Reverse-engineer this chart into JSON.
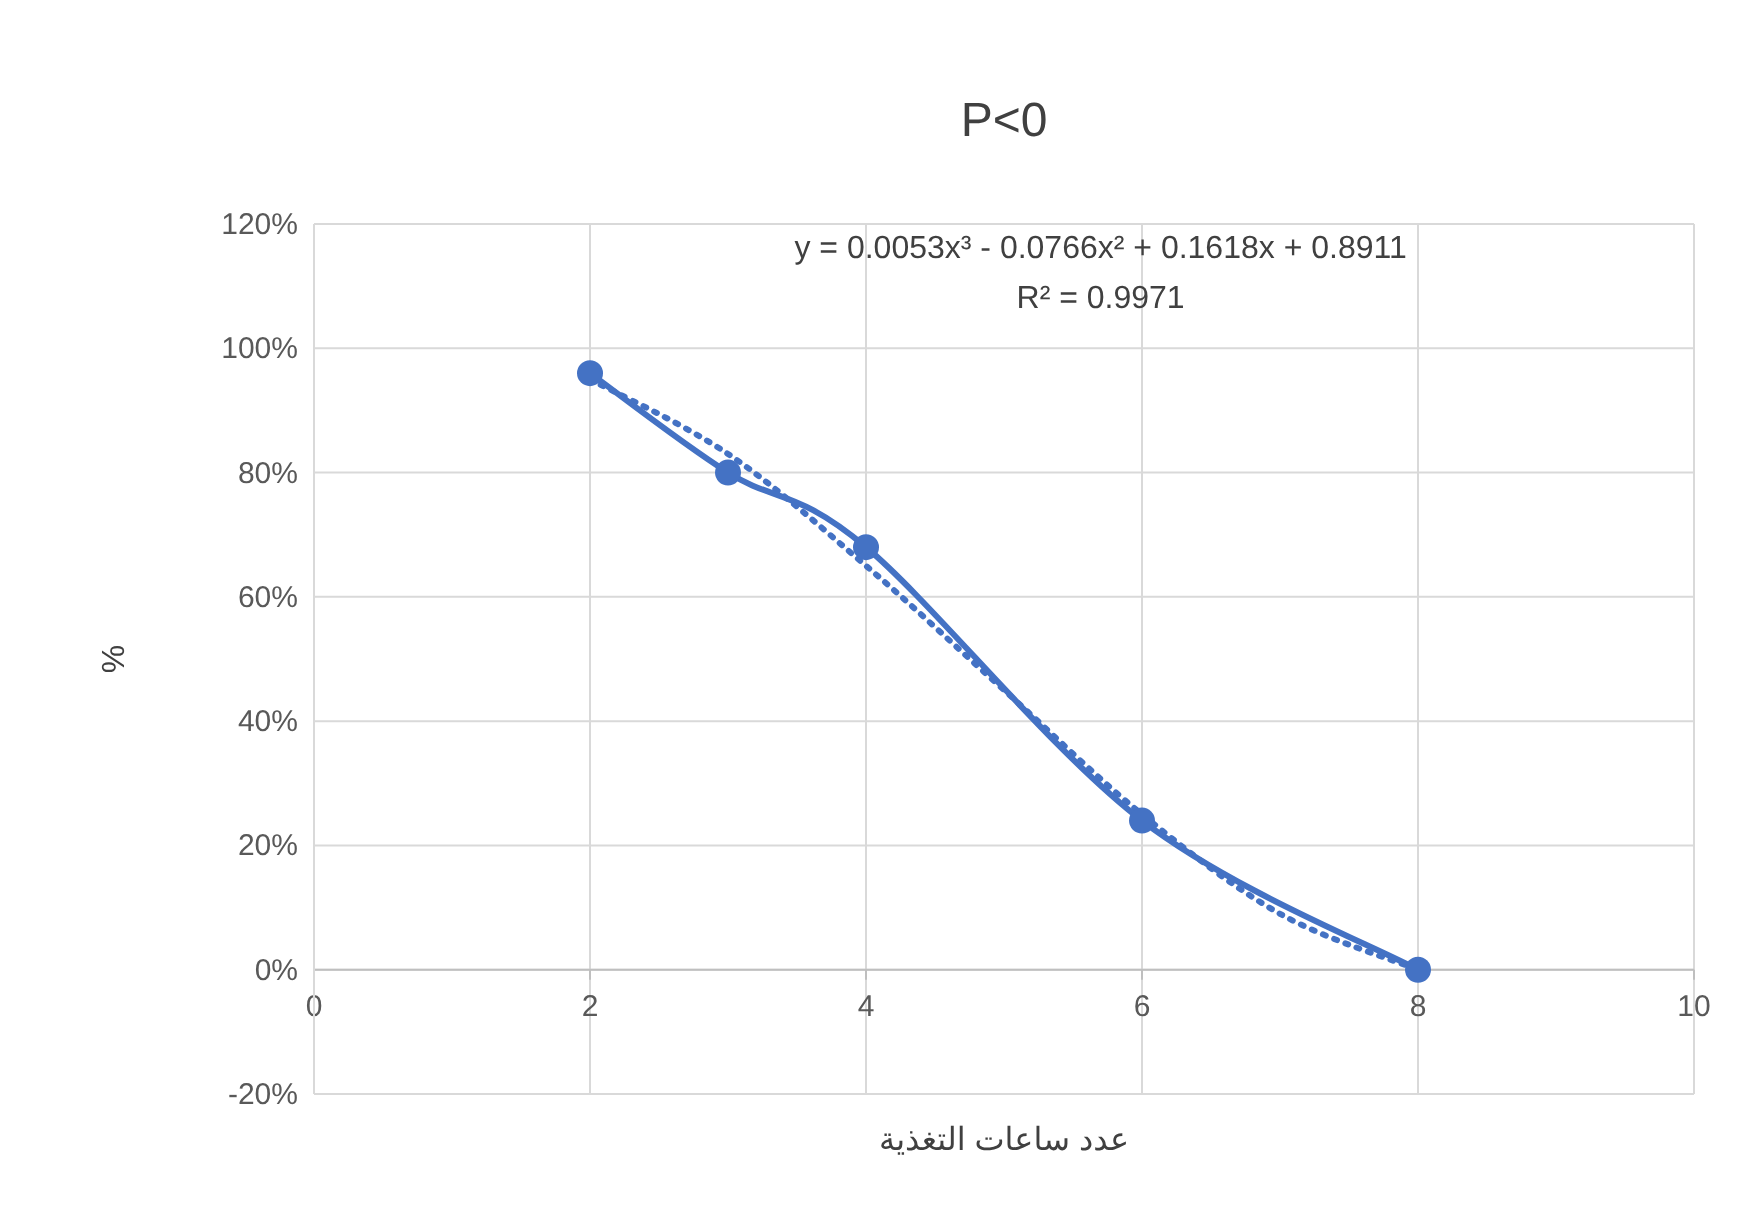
{
  "chart_data": {
    "type": "line",
    "title": "P<0",
    "xlabel": "عدد ساعات التغذية",
    "ylabel": "%",
    "xlim": [
      0,
      10
    ],
    "xticks": [
      0,
      2,
      4,
      6,
      8,
      10
    ],
    "ylim": [
      -20,
      120
    ],
    "yticks": [
      {
        "value": -20,
        "label": "-20%"
      },
      {
        "value": 0,
        "label": "0%"
      },
      {
        "value": 20,
        "label": "20%"
      },
      {
        "value": 40,
        "label": "40%"
      },
      {
        "value": 60,
        "label": "60%"
      },
      {
        "value": 80,
        "label": "80%"
      },
      {
        "value": 100,
        "label": "100%"
      },
      {
        "value": 120,
        "label": "120%"
      }
    ],
    "grid": true,
    "annotations": [
      "y = 0.0053x³ - 0.0766x² + 0.1618x + 0.8911",
      "R² = 0.9971"
    ],
    "series": [
      {
        "type": "line",
        "color": "#4472c4",
        "x": [
          2,
          3,
          4,
          6,
          8
        ],
        "values": [
          96,
          80,
          68,
          24,
          0
        ],
        "marker": "circle",
        "line_style": "solid"
      },
      {
        "type": "line",
        "color": "#4472c4",
        "x": [
          2,
          3,
          4,
          5,
          6,
          7,
          8
        ],
        "values": [
          95,
          83,
          65,
          45,
          25,
          9,
          0
        ],
        "marker": "none",
        "line_style": "dotted"
      }
    ]
  }
}
